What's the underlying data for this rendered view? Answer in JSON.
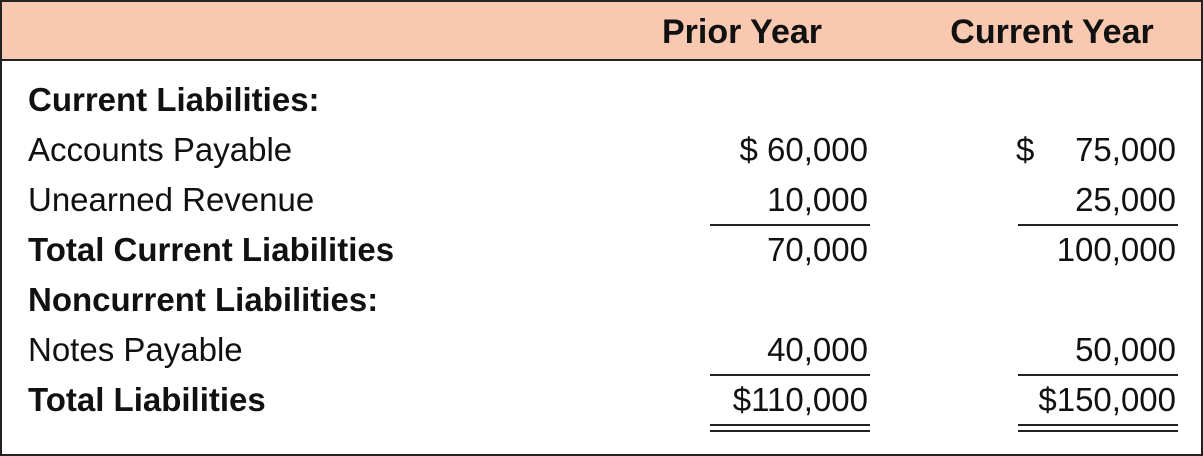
{
  "header": {
    "columns": [
      "Prior Year",
      "Current Year"
    ]
  },
  "table": {
    "rows": [
      {
        "label": "Current Liabilities:",
        "bold": true
      },
      {
        "label": "Accounts Payable",
        "prior": "$ 60,000",
        "current": {
          "symbol": "$",
          "amount": "75,000"
        }
      },
      {
        "label": "Unearned Revenue",
        "prior": "10,000",
        "current": "25,000"
      },
      {
        "label": "Total Current Liabilities",
        "bold": true,
        "prior": "70,000",
        "current": "100,000"
      },
      {
        "label": "Noncurrent Liabilities:",
        "bold": true
      },
      {
        "label": "Notes Payable",
        "prior": "40,000",
        "current": "50,000"
      },
      {
        "label": "Total Liabilities",
        "bold": true,
        "prior": "$110,000",
        "current": "$150,000"
      }
    ]
  }
}
